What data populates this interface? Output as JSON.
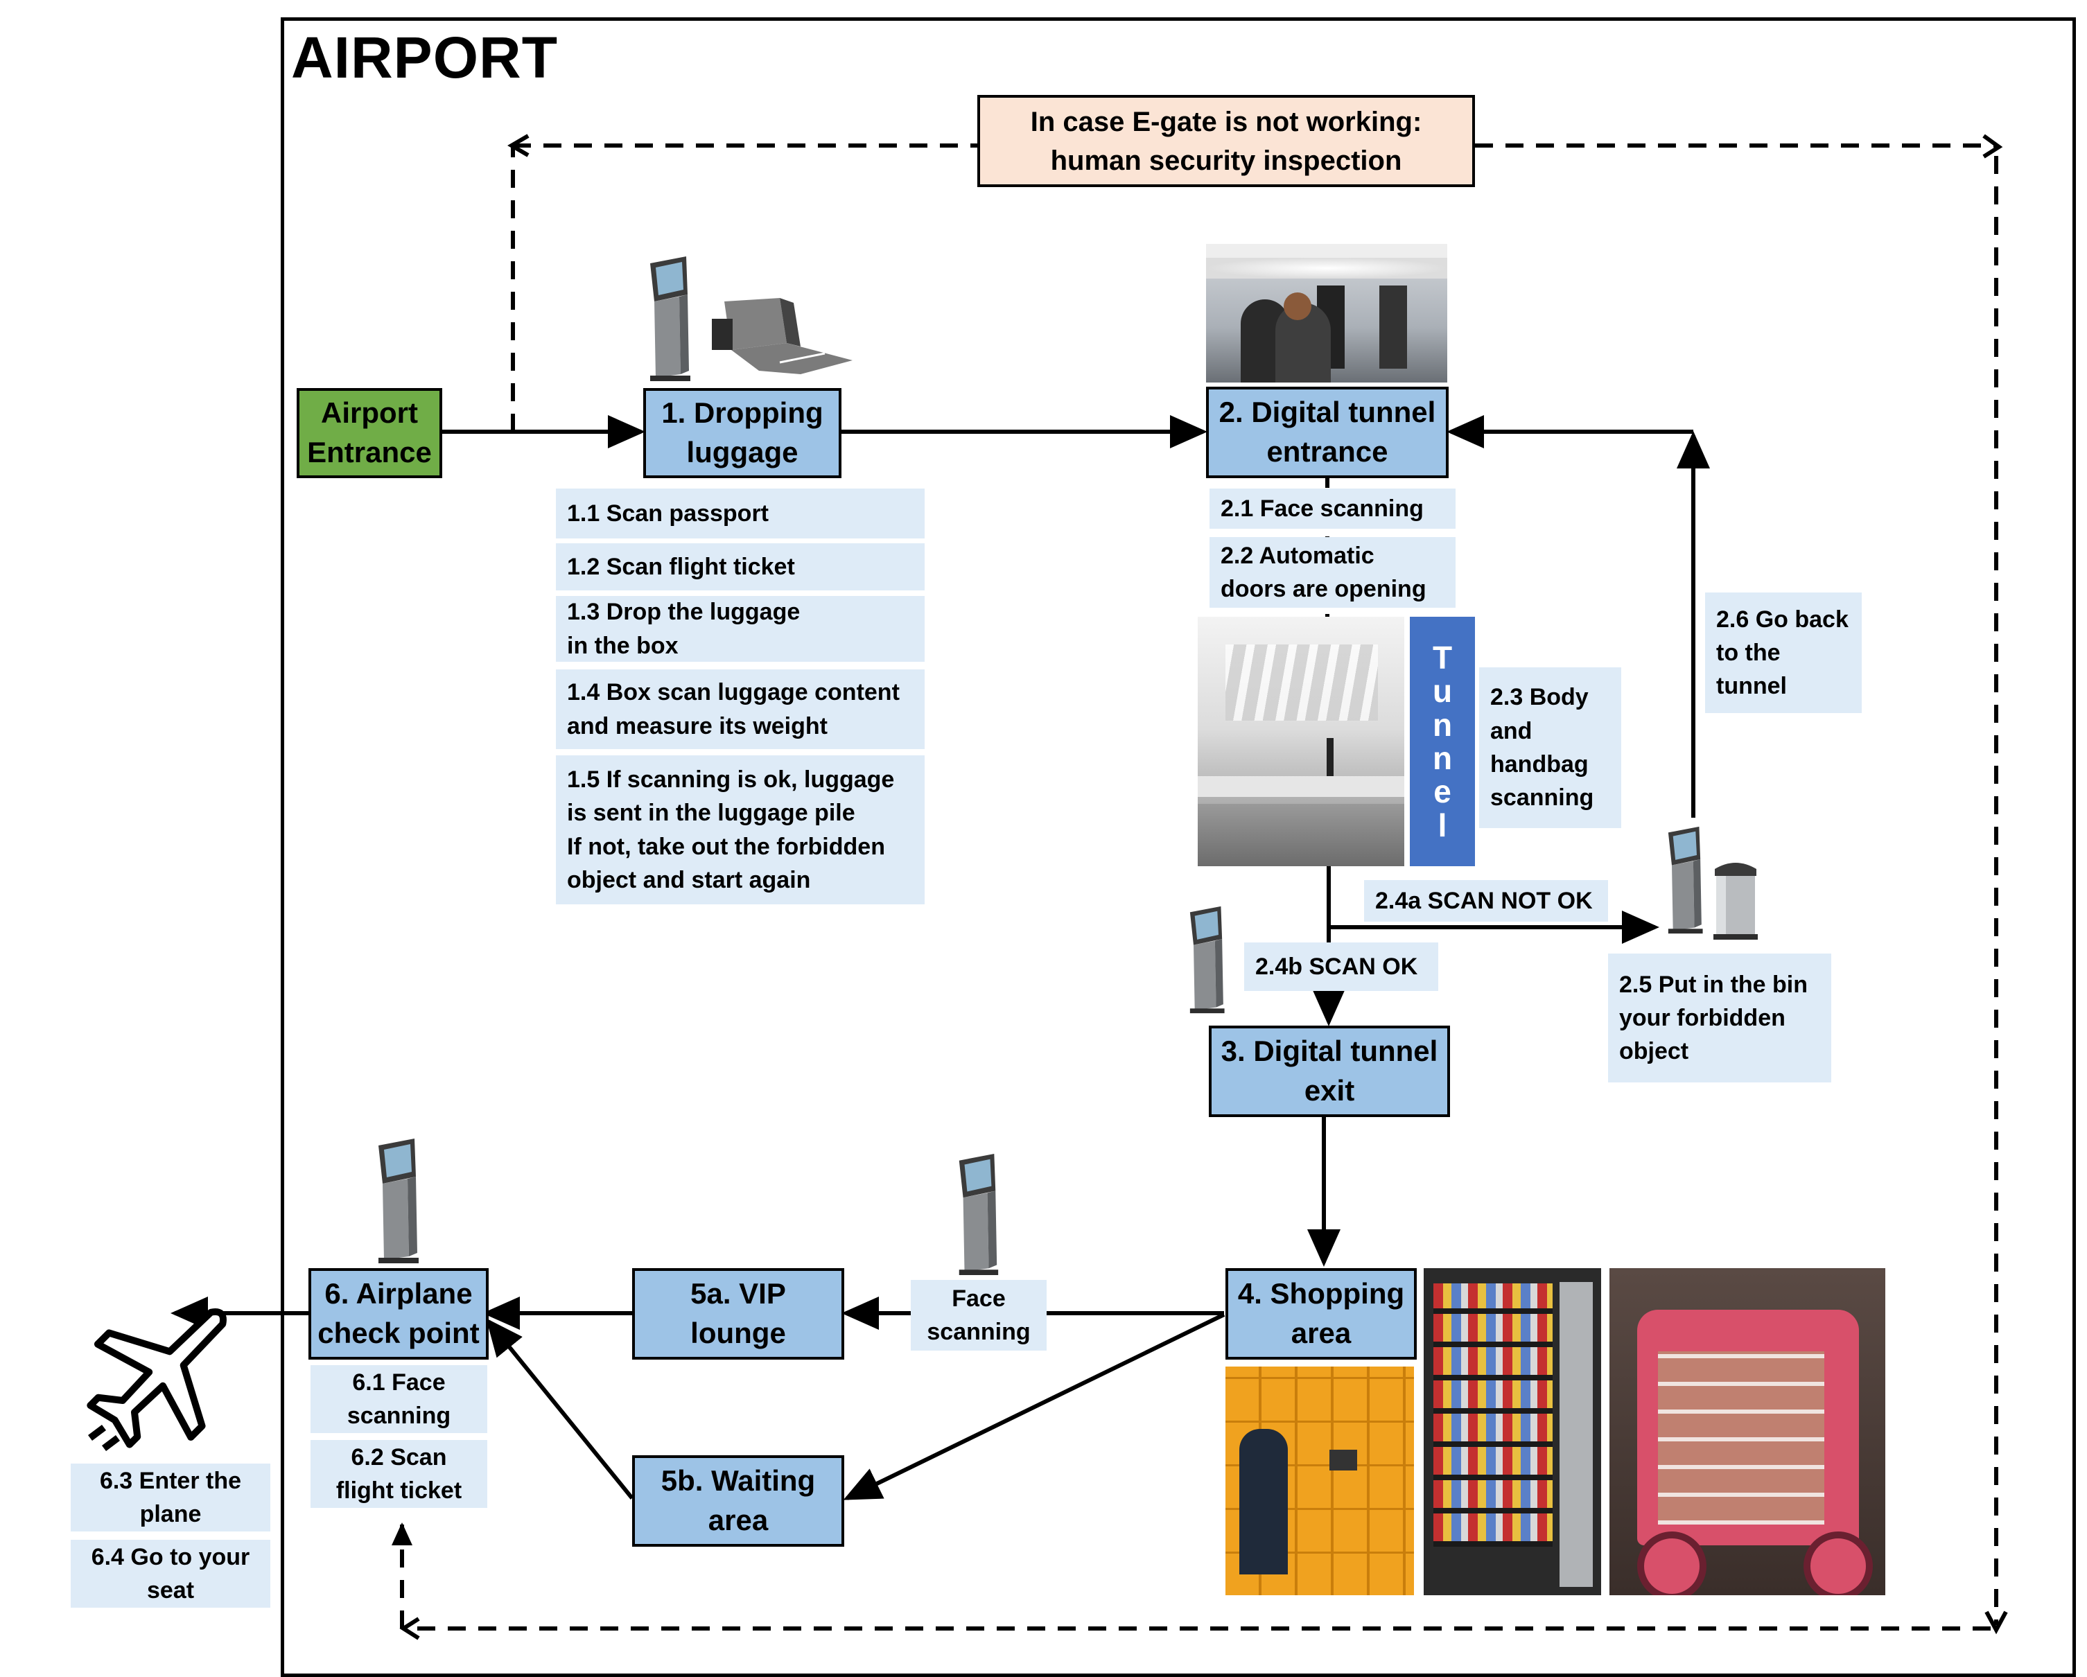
{
  "title": "AIRPORT",
  "fallback_note": "In case E-gate is not working:\nhuman security inspection",
  "nodes": {
    "entrance": "Airport\nEntrance",
    "dropping": "1. Dropping\nluggage",
    "tunnel_entrance": "2. Digital tunnel\nentrance",
    "tunnel_exit": "3. Digital tunnel\nexit",
    "shopping": "4. Shopping\narea",
    "vip": "5a. VIP\nlounge",
    "waiting": "5b. Waiting\narea",
    "checkpoint": "6. Airplane\ncheck point"
  },
  "steps": {
    "s11": "1.1 Scan passport",
    "s12": "1.2 Scan flight ticket",
    "s13": "1.3 Drop the luggage\n in the box",
    "s14": "1.4 Box scan luggage content\nand measure its weight",
    "s15": "1.5 If scanning is ok, luggage\nis sent in the luggage pile\nIf not, take out the forbidden\nobject and start again",
    "s21": "2.1 Face scanning",
    "s22": "2.2 Automatic\ndoors are opening",
    "s23": "2.3 Body\nand\nhandbag\nscanning",
    "s24a": "2.4a SCAN NOT OK",
    "s24b": "2.4b SCAN OK",
    "s25": "2.5 Put in the bin\nyour forbidden\nobject",
    "s26": "2.6 Go back\nto the\ntunnel",
    "face": "Face\nscanning",
    "s61": "6.1 Face\nscanning",
    "s62": "6.2 Scan\nflight ticket",
    "s63": "6.3 Enter the\nplane",
    "s64": "6.4 Go to your\nseat"
  },
  "tunnel_label": "Tunnel",
  "colors": {
    "node_fill": "#9dc3e6",
    "entrance_fill": "#70ad47",
    "step_fill": "#deebf7",
    "note_fill": "#fbe4d5",
    "tunnel_fill": "#4472c4"
  },
  "icons": [
    "kiosk-icon",
    "luggage-box-icon",
    "bin-icon",
    "airplane-icon",
    "egate-photo",
    "tunnel-photo",
    "locker-photo",
    "vending-machine-photo",
    "cosmetics-vending-photo"
  ]
}
